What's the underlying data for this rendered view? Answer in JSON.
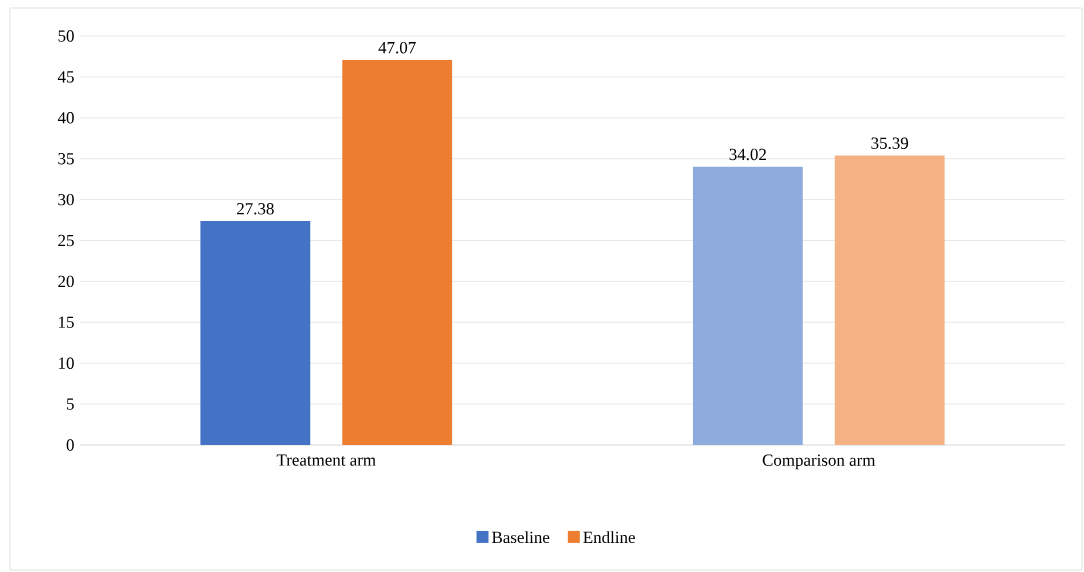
{
  "chart_data": {
    "type": "bar",
    "categories": [
      "Treatment arm",
      "Comparison arm"
    ],
    "series": [
      {
        "name": "Baseline",
        "color": "#4472c4",
        "colors": [
          "#4472c4",
          "#8faadc"
        ],
        "values": [
          27.38,
          34.02
        ]
      },
      {
        "name": "Endline",
        "color": "#ed7d31",
        "colors": [
          "#ed7d31",
          "#f4b183"
        ],
        "values": [
          47.07,
          35.39
        ]
      }
    ],
    "ylim": [
      0,
      50
    ],
    "yticks": [
      0,
      5,
      10,
      15,
      20,
      25,
      30,
      35,
      40,
      45,
      50
    ],
    "grid": "y",
    "legend": "bottom",
    "data_labels": true
  }
}
